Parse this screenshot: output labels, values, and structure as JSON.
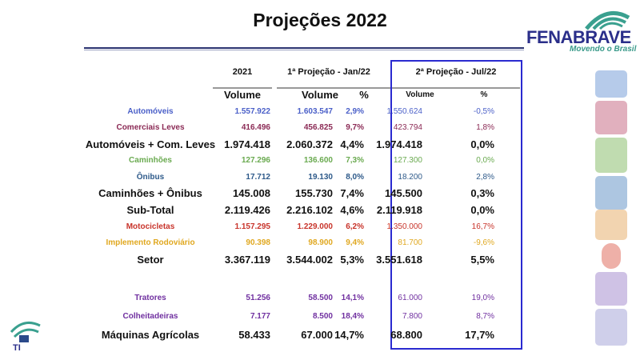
{
  "title": "Projeções 2022",
  "logo": {
    "name": "FENABRAVE",
    "slogan": "Movendo o Brasil"
  },
  "footer_logo": {
    "text": "TI"
  },
  "columns": {
    "y2021": "2021",
    "proj1": "1ª Projeção - Jan/22",
    "proj2": "2ª Projeção - Jul/22",
    "volume": "Volume",
    "pct": "%"
  },
  "colors": {
    "box": "#2a2ad0",
    "automoveis": "#4a5fc8",
    "comerciais": "#8b2a55",
    "caminhoes": "#6aaa50",
    "onibus": "#2e5a8a",
    "motos": "#c8342b",
    "implemento": "#e0a820",
    "agricolas": "#7030a0"
  },
  "rows": [
    {
      "label": "Automóveis",
      "v2021": "1.557.922",
      "p1_vol": "1.603.547",
      "p1_pct": "2,9%",
      "p2_vol": "1.550.624",
      "p2_pct": "-0,5%"
    },
    {
      "label": "Comerciais Leves",
      "v2021": "416.496",
      "p1_vol": "456.825",
      "p1_pct": "9,7%",
      "p2_vol": "423.794",
      "p2_pct": "1,8%"
    },
    {
      "label": "Automóveis + Com. Leves",
      "v2021": "1.974.418",
      "p1_vol": "2.060.372",
      "p1_pct": "4,4%",
      "p2_vol": "1.974.418",
      "p2_pct": "0,0%"
    },
    {
      "label": "Caminhões",
      "v2021": "127.296",
      "p1_vol": "136.600",
      "p1_pct": "7,3%",
      "p2_vol": "127.300",
      "p2_pct": "0,0%"
    },
    {
      "label": "Ônibus",
      "v2021": "17.712",
      "p1_vol": "19.130",
      "p1_pct": "8,0%",
      "p2_vol": "18.200",
      "p2_pct": "2,8%"
    },
    {
      "label": "Caminhões + Ônibus",
      "v2021": "145.008",
      "p1_vol": "155.730",
      "p1_pct": "7,4%",
      "p2_vol": "145.500",
      "p2_pct": "0,3%"
    },
    {
      "label": "Sub-Total",
      "v2021": "2.119.426",
      "p1_vol": "2.216.102",
      "p1_pct": "4,6%",
      "p2_vol": "2.119.918",
      "p2_pct": "0,0%"
    },
    {
      "label": "Motocicletas",
      "v2021": "1.157.295",
      "p1_vol": "1.229.000",
      "p1_pct": "6,2%",
      "p2_vol": "1.350.000",
      "p2_pct": "16,7%"
    },
    {
      "label": "Implemento Rodoviário",
      "v2021": "90.398",
      "p1_vol": "98.900",
      "p1_pct": "9,4%",
      "p2_vol": "81.700",
      "p2_pct": "-9,6%"
    },
    {
      "label": "Setor",
      "v2021": "3.367.119",
      "p1_vol": "3.544.002",
      "p1_pct": "5,3%",
      "p2_vol": "3.551.618",
      "p2_pct": "5,5%"
    },
    {
      "label": "Tratores",
      "v2021": "51.256",
      "p1_vol": "58.500",
      "p1_pct": "14,1%",
      "p2_vol": "61.000",
      "p2_pct": "19,0%"
    },
    {
      "label": "Colheitadeiras",
      "v2021": "7.177",
      "p1_vol": "8.500",
      "p1_pct": "18,4%",
      "p2_vol": "7.800",
      "p2_pct": "8,7%"
    },
    {
      "label": "Máquinas Agrícolas",
      "v2021": "58.433",
      "p1_vol": "67.000",
      "p1_pct": "14,7%",
      "p2_vol": "68.800",
      "p2_pct": "17,7%"
    }
  ]
}
